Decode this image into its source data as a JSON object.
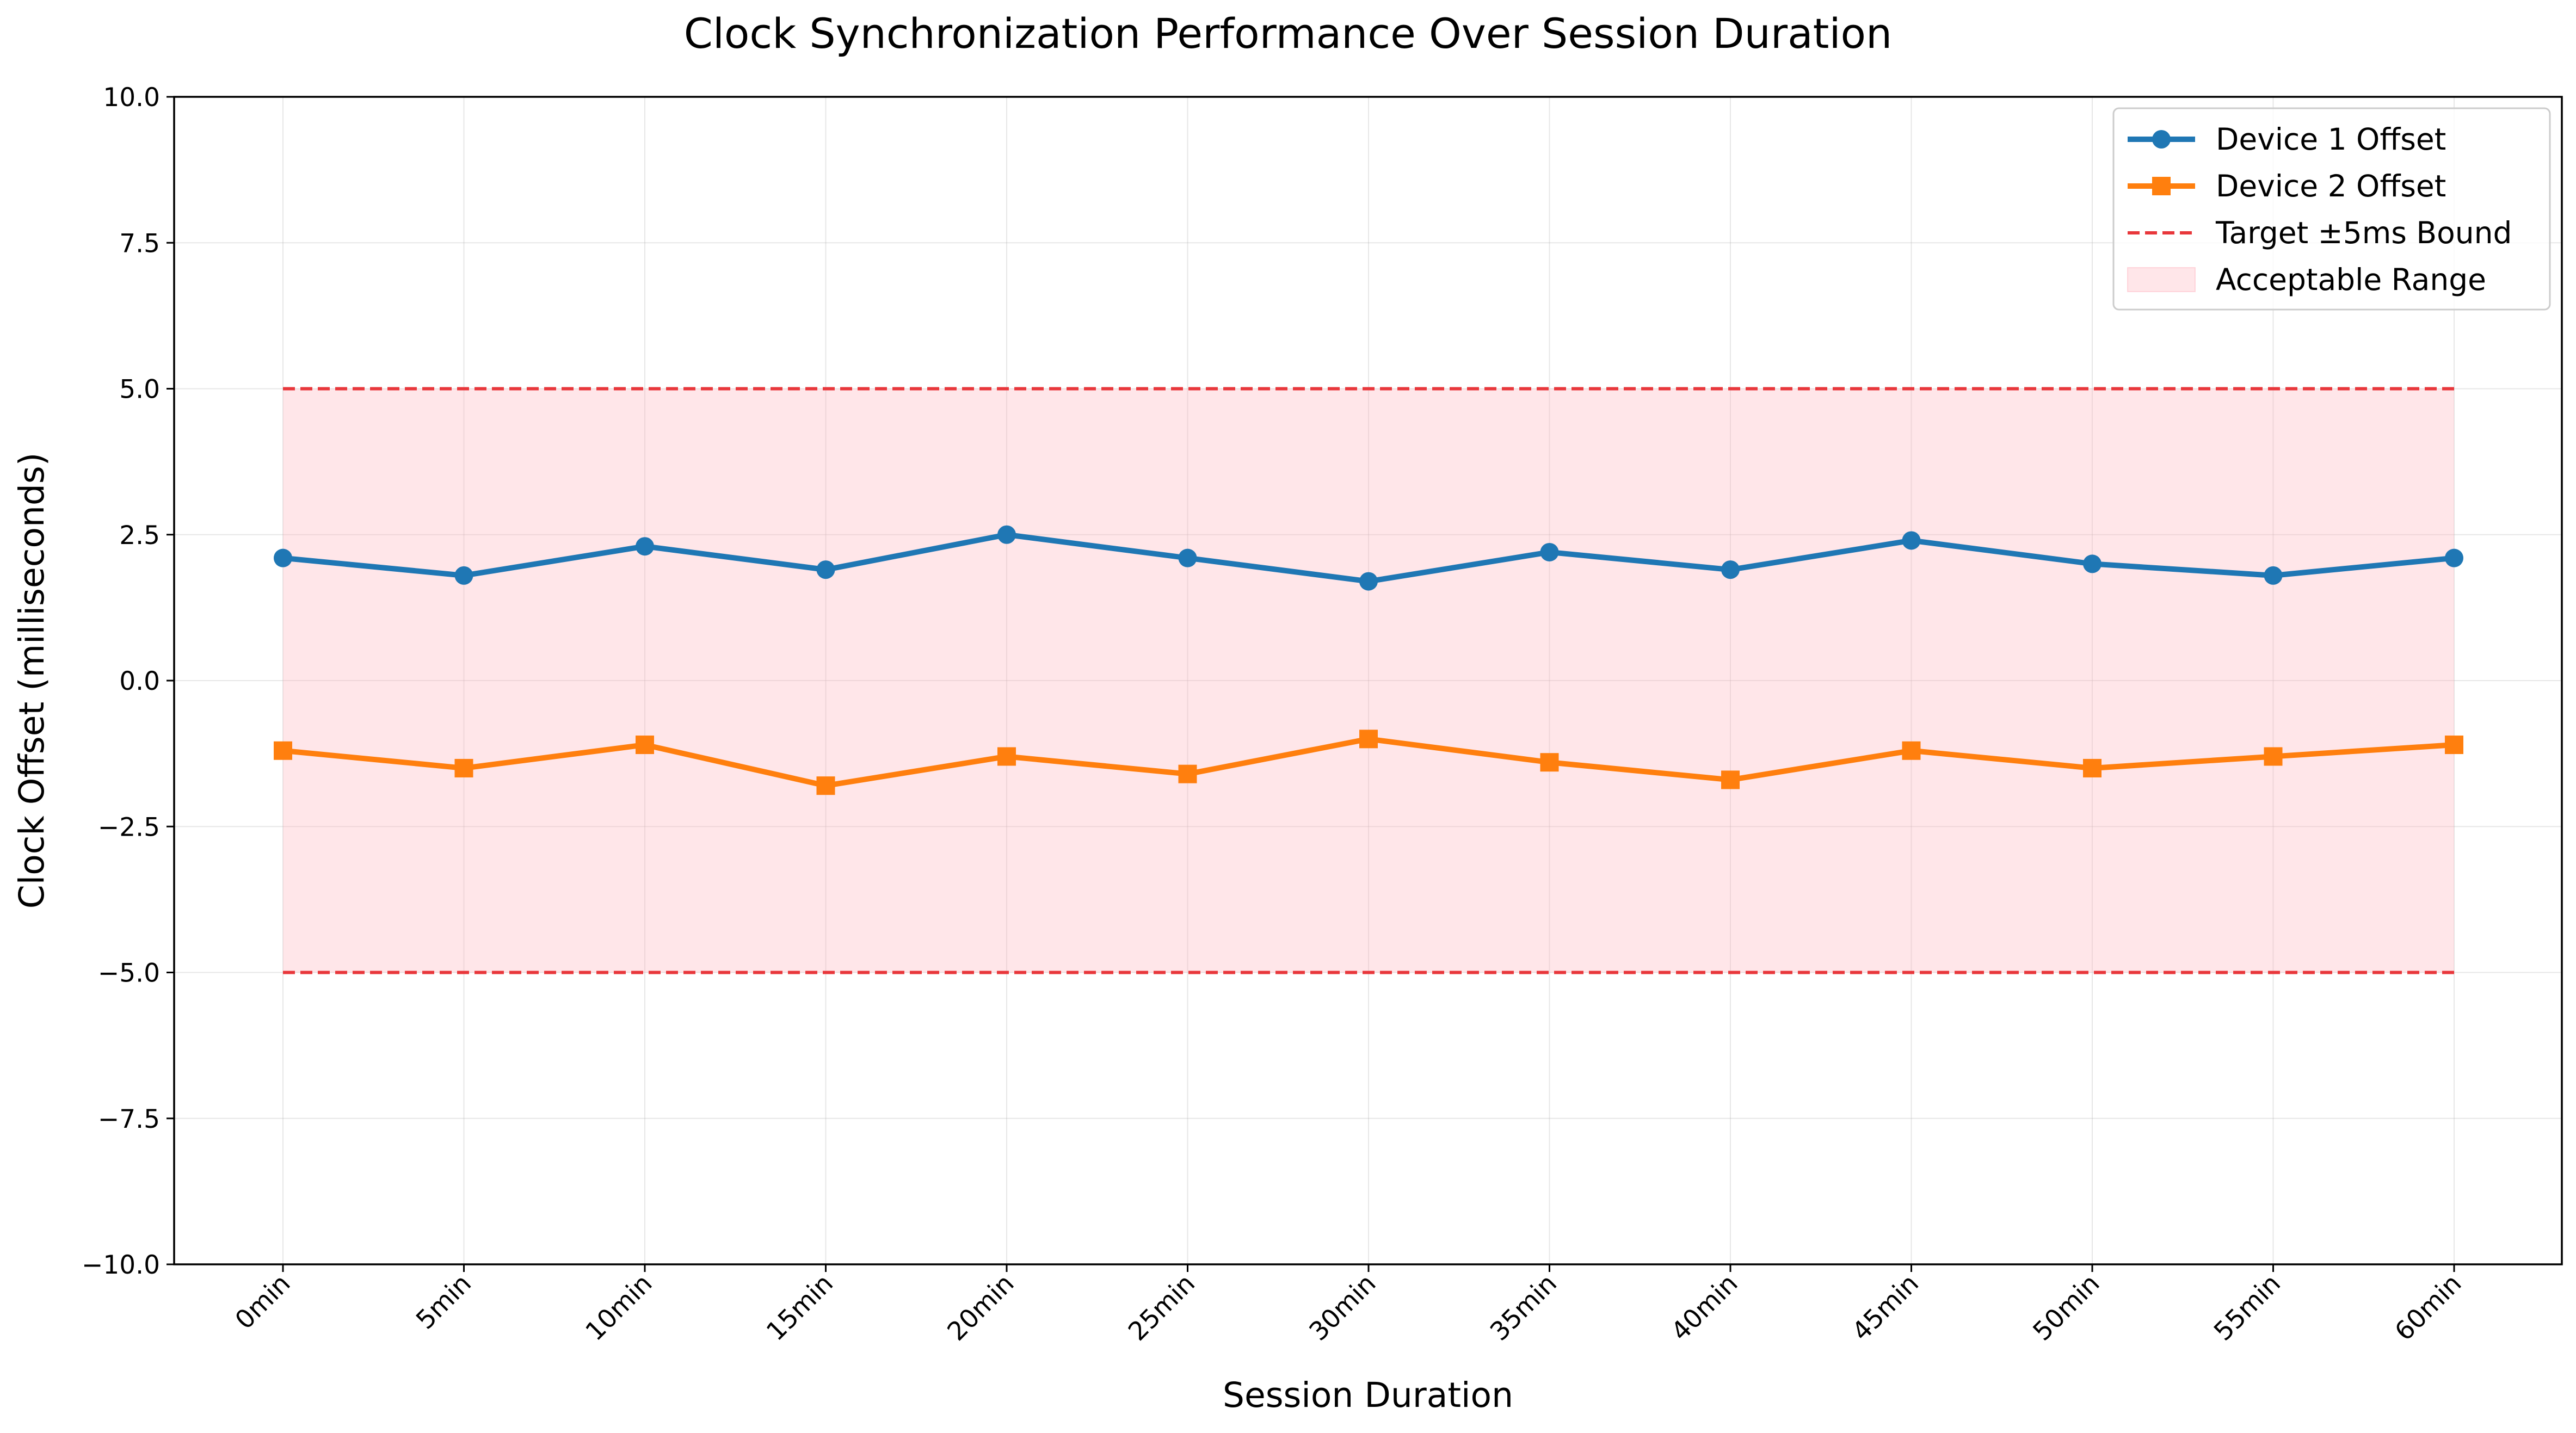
{
  "chart_data": {
    "type": "line",
    "title": "Clock Synchronization Performance Over Session Duration",
    "xlabel": "Session Duration",
    "ylabel": "Clock Offset (milliseconds)",
    "categories": [
      "0min",
      "5min",
      "10min",
      "15min",
      "20min",
      "25min",
      "30min",
      "35min",
      "40min",
      "45min",
      "50min",
      "55min",
      "60min"
    ],
    "ylim": [
      -10,
      10
    ],
    "yticks": [
      10,
      7.5,
      5,
      2.5,
      0,
      -2.5,
      -5,
      -7.5,
      -10
    ],
    "ytick_labels": [
      "10.0",
      "7.5",
      "5.0",
      "2.5",
      "0.0",
      "−2.5",
      "−5.0",
      "−7.5",
      "−10.0"
    ],
    "grid": true,
    "legend_position": "top-right",
    "series": [
      {
        "name": "Device 1 Offset",
        "marker": "circle",
        "color": "#1f77b4",
        "values": [
          2.1,
          1.8,
          2.3,
          1.9,
          2.5,
          2.1,
          1.7,
          2.2,
          1.9,
          2.4,
          2.0,
          1.8,
          2.1
        ]
      },
      {
        "name": "Device 2 Offset",
        "marker": "square",
        "color": "#ff7f0e",
        "values": [
          -1.2,
          -1.5,
          -1.1,
          -1.8,
          -1.3,
          -1.6,
          -1.0,
          -1.4,
          -1.7,
          -1.2,
          -1.5,
          -1.3,
          -1.1
        ]
      }
    ],
    "bounds": {
      "name": "Target ±5ms Bound",
      "upper": 5,
      "lower": -5,
      "color": "#e8373b",
      "style": "dashed"
    },
    "band": {
      "name": "Acceptable Range",
      "upper": 5,
      "lower": -5,
      "color": "#ffb6c1"
    }
  }
}
